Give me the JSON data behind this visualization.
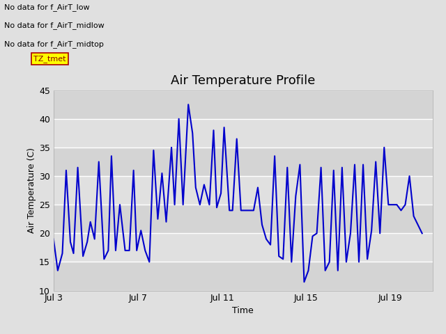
{
  "title": "Air Temperature Profile",
  "xlabel": "Time",
  "ylabel": "Air Temperature (C)",
  "annotations": [
    "No data for f_AirT_low",
    "No data for f_AirT_midlow",
    "No data for f_AirT_midtop"
  ],
  "tz_label": "TZ_tmet",
  "ylim": [
    10,
    45
  ],
  "xlim": [
    3.0,
    21.0
  ],
  "xtick_labels": [
    "Jul 3",
    "Jul 7",
    "Jul 11",
    "Jul 15",
    "Jul 19"
  ],
  "xtick_positions": [
    3,
    7,
    11,
    15,
    19
  ],
  "ytick_labels": [
    "10",
    "15",
    "20",
    "25",
    "30",
    "35",
    "40",
    "45"
  ],
  "ytick_positions": [
    10,
    15,
    20,
    25,
    30,
    35,
    40,
    45
  ],
  "line_color": "#0000cc",
  "bg_color": "#e0e0e0",
  "band_dark": "#d4d4d4",
  "band_light": "#e0e0e0",
  "title_fontsize": 13,
  "axis_label_fontsize": 9,
  "tick_fontsize": 9,
  "ann_fontsize": 8,
  "x_data": [
    3.0,
    3.2,
    3.42,
    3.6,
    3.8,
    3.95,
    4.15,
    4.4,
    4.6,
    4.75,
    4.95,
    5.15,
    5.4,
    5.6,
    5.75,
    5.95,
    6.15,
    6.4,
    6.6,
    6.8,
    6.95,
    7.15,
    7.35,
    7.55,
    7.75,
    7.95,
    8.15,
    8.35,
    8.6,
    8.75,
    8.95,
    9.15,
    9.4,
    9.6,
    9.75,
    9.95,
    10.15,
    10.4,
    10.6,
    10.75,
    10.95,
    11.1,
    11.35,
    11.5,
    11.7,
    11.9,
    12.1,
    12.3,
    12.5,
    12.7,
    12.9,
    13.1,
    13.3,
    13.5,
    13.7,
    13.9,
    14.1,
    14.3,
    14.5,
    14.7,
    14.9,
    15.1,
    15.3,
    15.5,
    15.7,
    15.9,
    16.1,
    16.3,
    16.5,
    16.7,
    16.9,
    17.1,
    17.3,
    17.5,
    17.7,
    17.9,
    18.1,
    18.3,
    18.5,
    18.7,
    18.9,
    19.1,
    19.3,
    19.5,
    19.7,
    19.9,
    20.1,
    20.5
  ],
  "y_data": [
    19.0,
    13.5,
    16.5,
    31.0,
    18.5,
    16.5,
    31.5,
    16.0,
    18.5,
    22.0,
    19.0,
    32.5,
    15.5,
    17.0,
    33.5,
    17.0,
    25.0,
    17.0,
    17.0,
    31.0,
    17.0,
    20.5,
    17.0,
    15.0,
    34.5,
    22.5,
    30.5,
    22.0,
    35.0,
    25.0,
    40.0,
    25.0,
    42.5,
    37.5,
    28.0,
    25.0,
    28.5,
    25.0,
    38.0,
    24.5,
    27.0,
    38.5,
    24.0,
    24.0,
    36.5,
    24.0,
    24.0,
    24.0,
    24.0,
    28.0,
    21.5,
    19.0,
    18.0,
    33.5,
    16.0,
    15.5,
    31.5,
    15.0,
    26.5,
    32.0,
    11.5,
    13.5,
    19.5,
    20.0,
    31.5,
    13.5,
    15.0,
    31.0,
    13.5,
    31.5,
    15.0,
    20.0,
    32.0,
    15.0,
    32.0,
    15.5,
    20.5,
    32.5,
    20.0,
    35.0,
    25.0,
    25.0,
    25.0,
    24.0,
    25.0,
    30.0,
    23.0,
    20.0
  ]
}
